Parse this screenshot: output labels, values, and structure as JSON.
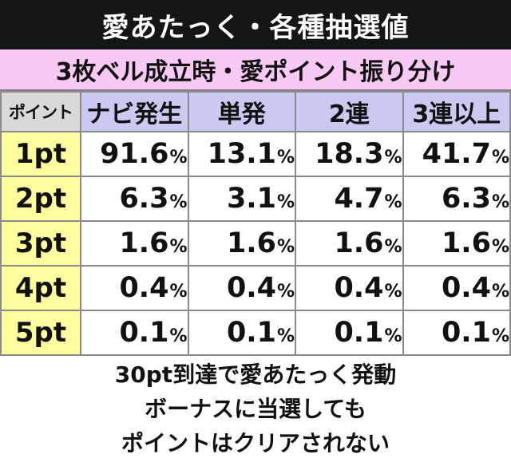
{
  "header": {
    "title": "愛あたっく・各種抽選値",
    "subtitle": "3枚ベル成立時・愛ポイント振り分け"
  },
  "table": {
    "corner": "ポイント",
    "columns": [
      "ナビ発生",
      "単発",
      "2連",
      "3連以上"
    ],
    "unit": "%",
    "rows": [
      {
        "label": "1pt",
        "values": [
          "91.6",
          "13.1",
          "18.3",
          "41.7"
        ]
      },
      {
        "label": "2pt",
        "values": [
          "6.3",
          "3.1",
          "4.7",
          "6.3"
        ]
      },
      {
        "label": "3pt",
        "values": [
          "1.6",
          "1.6",
          "1.6",
          "1.6"
        ]
      },
      {
        "label": "4pt",
        "values": [
          "0.4",
          "0.4",
          "0.4",
          "0.4"
        ]
      },
      {
        "label": "5pt",
        "values": [
          "0.1",
          "0.1",
          "0.1",
          "0.1"
        ]
      }
    ]
  },
  "note": {
    "lines": [
      "30pt到達で愛あたっく発動",
      "ボーナスに当選しても",
      "ポイントはクリアされない"
    ]
  },
  "colors": {
    "banner": "#151515",
    "subtitle_bg": "#f7c9f4",
    "column_header_bg": "#c9c9f2",
    "row_header_bg": "#ffffa0",
    "corner_bg": "#d9d9d9"
  }
}
